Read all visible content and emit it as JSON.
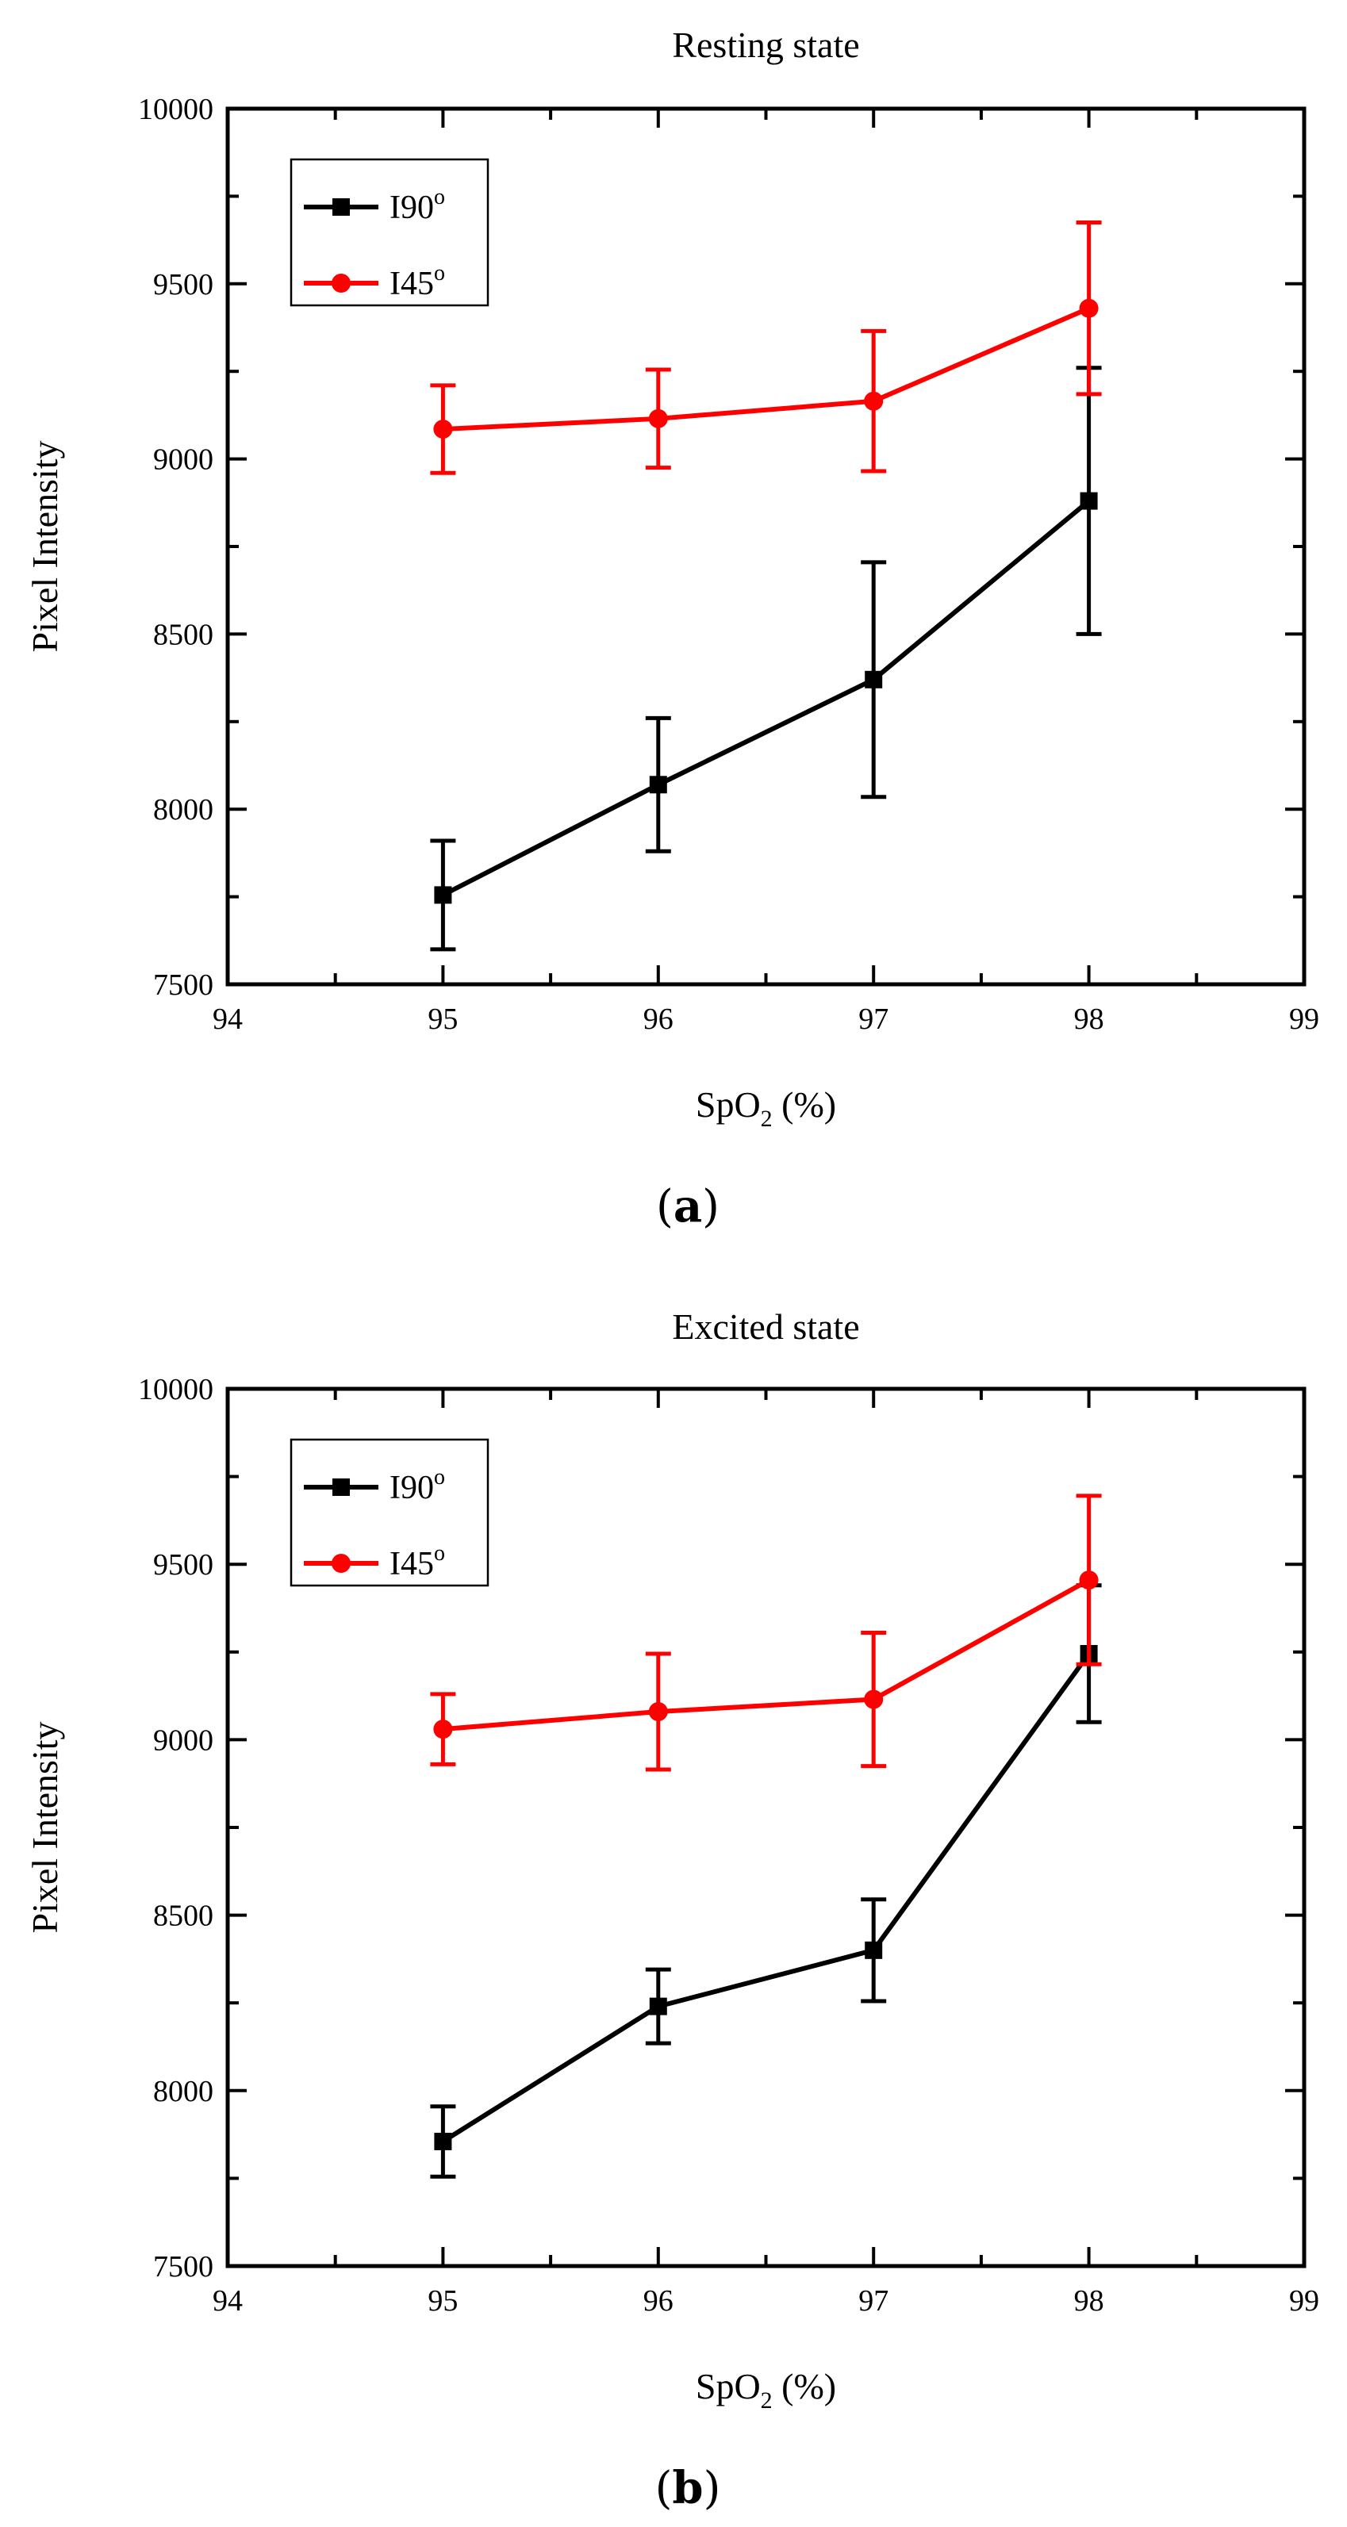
{
  "chart_data": [
    {
      "type": "line",
      "title": "Resting state",
      "xlabel": "SpO",
      "xlabel_sub": "2",
      "xlabel_suffix": " (%)",
      "ylabel": "Pixel Intensity",
      "xlim": [
        94,
        99
      ],
      "ylim": [
        7500,
        10000
      ],
      "xticks": [
        94,
        95,
        96,
        97,
        98,
        99
      ],
      "yticks": [
        7500,
        8000,
        8500,
        9000,
        9500,
        10000
      ],
      "panel_label": "a",
      "x": [
        95,
        96,
        97,
        98
      ],
      "series": [
        {
          "name": "I90",
          "sup": "o",
          "color": "#000000",
          "marker": "square",
          "values": [
            7755,
            8070,
            8370,
            8880
          ],
          "errors": [
            155,
            190,
            335,
            380
          ]
        },
        {
          "name": "I45",
          "sup": "o",
          "color": "#ff0000",
          "marker": "circle",
          "values": [
            9085,
            9115,
            9165,
            9430
          ],
          "errors": [
            125,
            140,
            200,
            245
          ]
        }
      ]
    },
    {
      "type": "line",
      "title": "Excited state",
      "xlabel": "SpO",
      "xlabel_sub": "2",
      "xlabel_suffix": " (%)",
      "ylabel": "Pixel Intensity",
      "xlim": [
        94,
        99
      ],
      "ylim": [
        7500,
        10000
      ],
      "xticks": [
        94,
        95,
        96,
        97,
        98,
        99
      ],
      "yticks": [
        7500,
        8000,
        8500,
        9000,
        9500,
        10000
      ],
      "panel_label": "b",
      "x": [
        95,
        96,
        97,
        98
      ],
      "series": [
        {
          "name": "I90",
          "sup": "o",
          "color": "#000000",
          "marker": "square",
          "values": [
            7855,
            8240,
            8400,
            9245
          ],
          "errors": [
            100,
            105,
            145,
            195
          ]
        },
        {
          "name": "I45",
          "sup": "o",
          "color": "#ff0000",
          "marker": "circle",
          "values": [
            9030,
            9080,
            9115,
            9455
          ],
          "errors": [
            100,
            165,
            190,
            240
          ]
        }
      ]
    }
  ]
}
